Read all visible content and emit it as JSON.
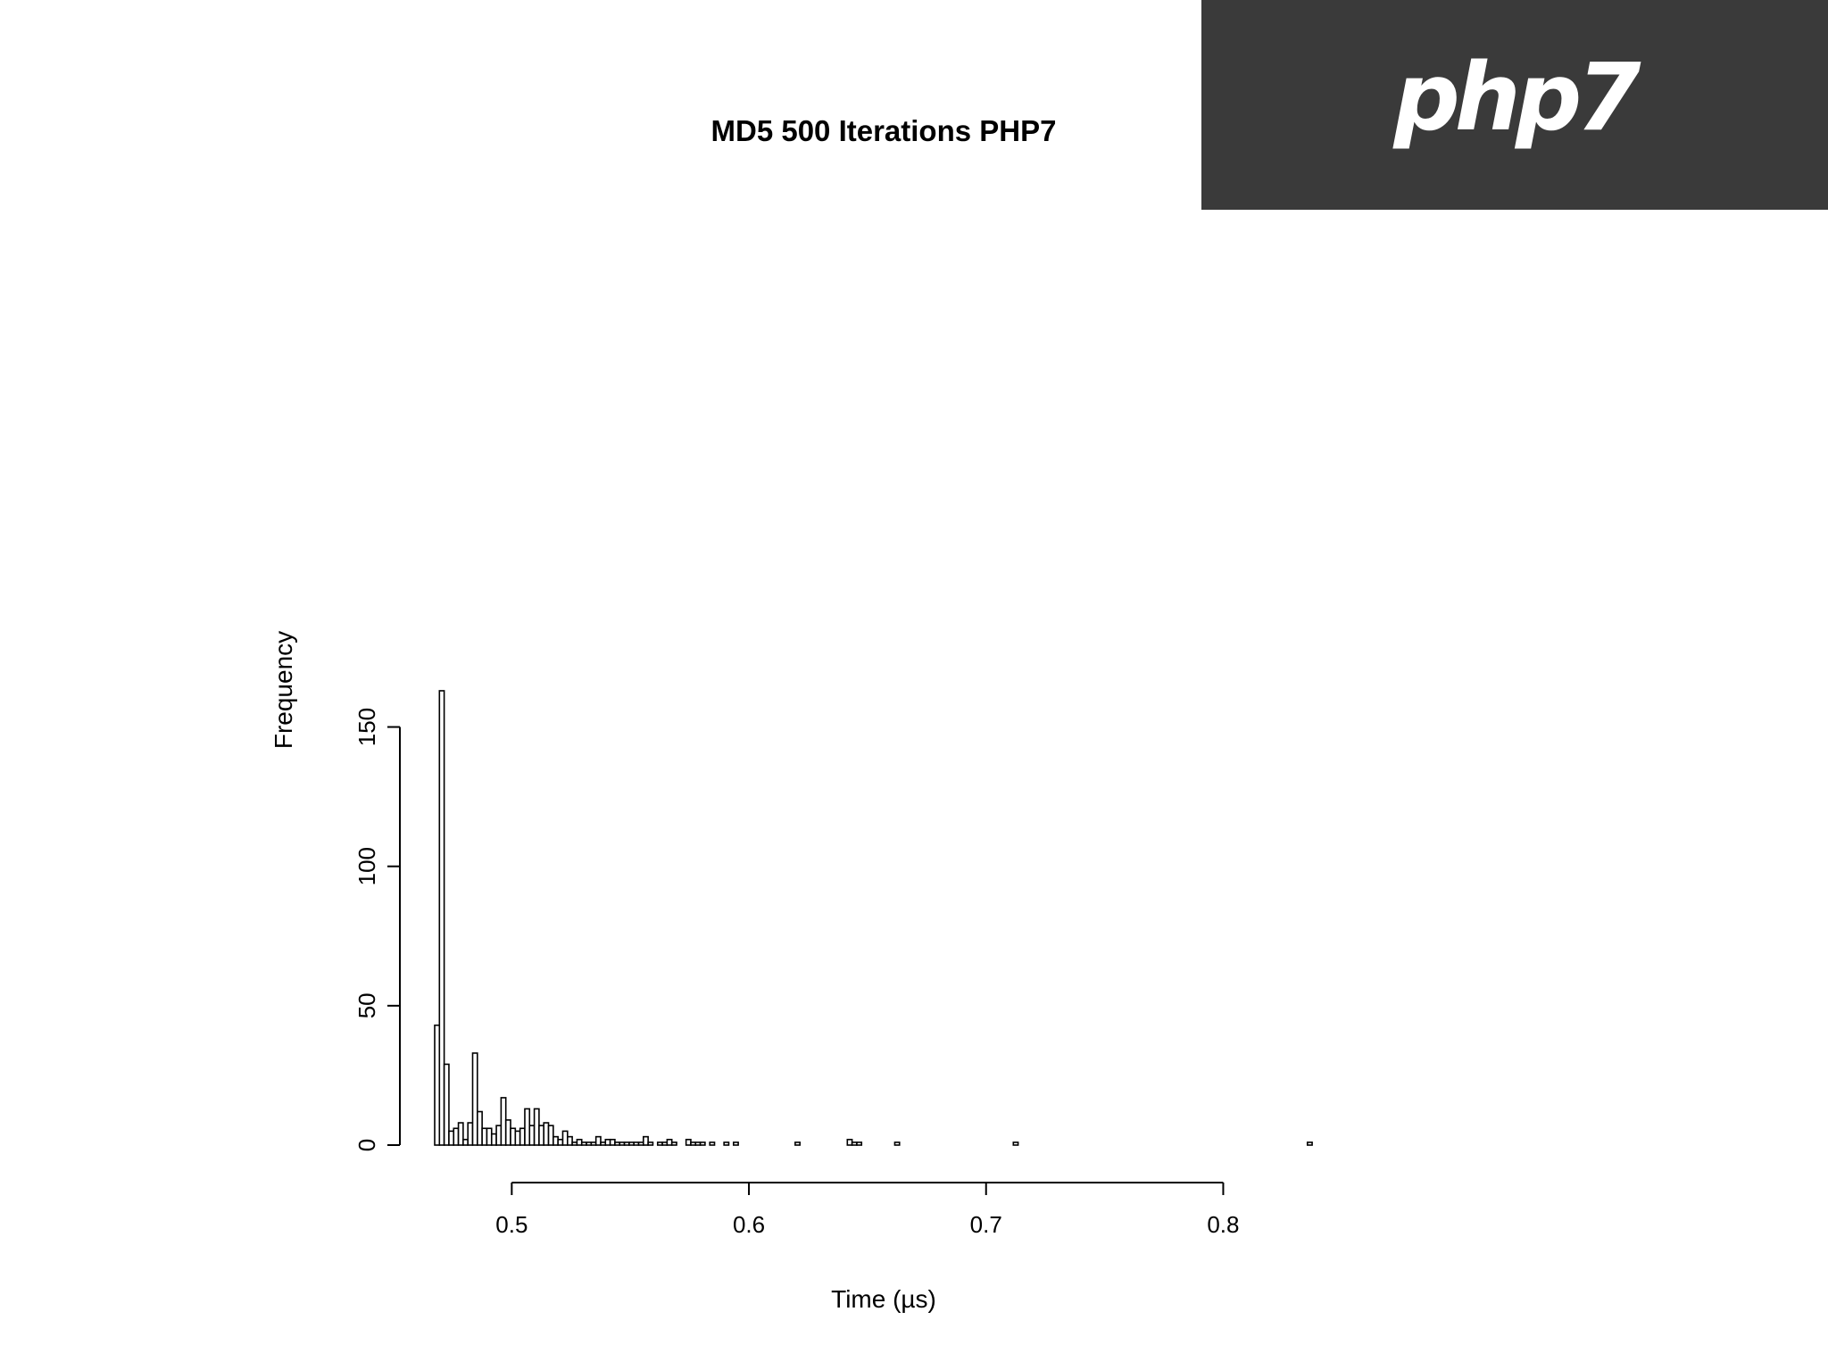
{
  "logo": {
    "text": "php7",
    "background": "#3a3a3a",
    "color": "#ffffff"
  },
  "chart_data": {
    "type": "histogram",
    "title": "MD5 500 Iterations PHP7",
    "xlabel": "Time (µs)",
    "ylabel": "Frequency",
    "xlim": [
      0.4675,
      0.845
    ],
    "ylim": [
      0,
      163
    ],
    "xticks": [
      0.5,
      0.6,
      0.7,
      0.8
    ],
    "xtick_labels": [
      "0.5",
      "0.6",
      "0.7",
      "0.8"
    ],
    "yticks": [
      0,
      50,
      100,
      150
    ],
    "ytick_labels": [
      "0",
      "50",
      "100",
      "150"
    ],
    "bin_start": 0.4675,
    "bin_width": 0.002,
    "frequencies": [
      43,
      163,
      29,
      5,
      6,
      8,
      2,
      8,
      33,
      12,
      6,
      6,
      4,
      7,
      17,
      9,
      6,
      5,
      6,
      13,
      7,
      13,
      7,
      8,
      7,
      3,
      2,
      5,
      3,
      1,
      2,
      1,
      1,
      1,
      3,
      1,
      2,
      2,
      1,
      1,
      1,
      1,
      1,
      1,
      3,
      1,
      0,
      1,
      1,
      2,
      1,
      0,
      0,
      2,
      1,
      1,
      1,
      0,
      1,
      0,
      0,
      1,
      0,
      1,
      0,
      0,
      0,
      0,
      0,
      0,
      0,
      0,
      0,
      0,
      0,
      0,
      1,
      0,
      0,
      0,
      0,
      0,
      0,
      0,
      0,
      0,
      0,
      2,
      1,
      1,
      0,
      0,
      0,
      0,
      0,
      0,
      0,
      1,
      0,
      0,
      0,
      0,
      0,
      0,
      0,
      0,
      0,
      0,
      0,
      0,
      0,
      0,
      0,
      0,
      0,
      0,
      0,
      0,
      0,
      0,
      0,
      0,
      1,
      0,
      0,
      0,
      0,
      0,
      0,
      0,
      0,
      0,
      0,
      0,
      0,
      0,
      0,
      0,
      0,
      0,
      0,
      0,
      0,
      0,
      0,
      0,
      0,
      0,
      0,
      0,
      0,
      0,
      0,
      0,
      0,
      0,
      0,
      0,
      0,
      0,
      0,
      0,
      0,
      0,
      0,
      0,
      0,
      0,
      0,
      0,
      0,
      0,
      0,
      0,
      0,
      0,
      0,
      0,
      0,
      0,
      0,
      0,
      0,
      0,
      1
    ]
  }
}
